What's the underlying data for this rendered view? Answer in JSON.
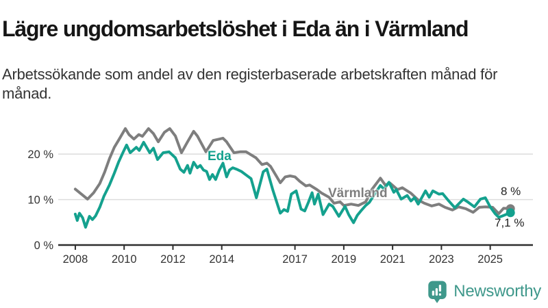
{
  "header": {
    "title": "Lägre ungdomsarbetslöshet i Eda än i Värmland",
    "subtitle": "Arbetssökande som andel av den registerbaserade arbetskraften månad för månad."
  },
  "colors": {
    "eda": "#14a18e",
    "varmland": "#7e7e7e",
    "grid": "#dcdcdc",
    "axis": "#2e2e2e",
    "tick_text": "#333333",
    "logo": "#3f988b"
  },
  "footer": {
    "brand": "Newsworthy"
  },
  "chart_data": {
    "type": "line",
    "title": "Lägre ungdomsarbetslöshet i Eda än i Värmland",
    "subtitle": "Arbetssökande som andel av den registerbaserade arbetskraften månad för månad.",
    "unit": "%",
    "grid": "horizontal",
    "legend_position": "inline-labels",
    "xlim": [
      2007.3,
      2026.75
    ],
    "ylim": [
      0,
      28.3
    ],
    "x_ticks": [
      2008,
      2010,
      2012,
      2014,
      2017,
      2019,
      2021,
      2023,
      2025
    ],
    "x_tick_labels": [
      "2008",
      "2010",
      "2012",
      "2014",
      "2017",
      "2019",
      "2021",
      "2023",
      "2025"
    ],
    "y_ticks": [
      0,
      10,
      20
    ],
    "y_tick_labels": [
      "0 %",
      "10 %",
      "20 %"
    ],
    "series": [
      {
        "name": "Värmland",
        "color": "#7e7e7e",
        "end_label": "8 %",
        "end_value": 8.0,
        "points": [
          [
            2008.0,
            12.3
          ],
          [
            2008.25,
            11.2
          ],
          [
            2008.5,
            10.1
          ],
          [
            2008.75,
            11.5
          ],
          [
            2009.0,
            13.5
          ],
          [
            2009.2,
            16.0
          ],
          [
            2009.4,
            19.0
          ],
          [
            2009.6,
            21.5
          ],
          [
            2009.8,
            23.3
          ],
          [
            2010.05,
            25.6
          ],
          [
            2010.2,
            24.3
          ],
          [
            2010.4,
            23.3
          ],
          [
            2010.6,
            24.3
          ],
          [
            2010.75,
            23.9
          ],
          [
            2011.0,
            25.6
          ],
          [
            2011.2,
            24.5
          ],
          [
            2011.4,
            22.7
          ],
          [
            2011.65,
            24.8
          ],
          [
            2011.87,
            25.6
          ],
          [
            2012.1,
            24.0
          ],
          [
            2012.35,
            20.3
          ],
          [
            2012.6,
            22.7
          ],
          [
            2012.85,
            25.0
          ],
          [
            2013.0,
            24.0
          ],
          [
            2013.35,
            20.5
          ],
          [
            2013.65,
            23.0
          ],
          [
            2013.9,
            23.3
          ],
          [
            2014.05,
            23.5
          ],
          [
            2014.2,
            22.7
          ],
          [
            2014.5,
            20.3
          ],
          [
            2014.75,
            20.5
          ],
          [
            2015.0,
            20.5
          ],
          [
            2015.4,
            19.2
          ],
          [
            2015.65,
            17.7
          ],
          [
            2015.85,
            18.0
          ],
          [
            2016.0,
            17.3
          ],
          [
            2016.2,
            15.5
          ],
          [
            2016.4,
            13.7
          ],
          [
            2016.6,
            15.0
          ],
          [
            2016.8,
            15.2
          ],
          [
            2017.0,
            15.0
          ],
          [
            2017.2,
            14.0
          ],
          [
            2017.45,
            13.0
          ],
          [
            2017.6,
            13.2
          ],
          [
            2017.9,
            12.2
          ],
          [
            2018.1,
            11.4
          ],
          [
            2018.4,
            10.5
          ],
          [
            2018.6,
            9.2
          ],
          [
            2018.85,
            9.5
          ],
          [
            2019.0,
            8.7
          ],
          [
            2019.3,
            9.0
          ],
          [
            2019.6,
            8.7
          ],
          [
            2019.9,
            9.5
          ],
          [
            2020.15,
            12.2
          ],
          [
            2020.5,
            14.7
          ],
          [
            2020.7,
            13.2
          ],
          [
            2020.9,
            13.6
          ],
          [
            2021.2,
            12.2
          ],
          [
            2021.4,
            12.6
          ],
          [
            2021.75,
            11.4
          ],
          [
            2022.05,
            9.9
          ],
          [
            2022.3,
            9.2
          ],
          [
            2022.6,
            8.6
          ],
          [
            2022.9,
            9.0
          ],
          [
            2023.15,
            8.3
          ],
          [
            2023.45,
            7.7
          ],
          [
            2023.7,
            8.4
          ],
          [
            2024.0,
            8.0
          ],
          [
            2024.3,
            7.2
          ],
          [
            2024.55,
            8.3
          ],
          [
            2024.8,
            8.4
          ],
          [
            2025.1,
            8.3
          ],
          [
            2025.35,
            6.9
          ],
          [
            2025.55,
            8.1
          ],
          [
            2025.83,
            8.0
          ]
        ]
      },
      {
        "name": "Eda",
        "color": "#14a18e",
        "end_label": "7,1 %",
        "end_value": 7.1,
        "points": [
          [
            2008.0,
            6.8
          ],
          [
            2008.08,
            5.4
          ],
          [
            2008.17,
            7.0
          ],
          [
            2008.3,
            6.0
          ],
          [
            2008.42,
            3.9
          ],
          [
            2008.58,
            6.3
          ],
          [
            2008.7,
            5.6
          ],
          [
            2008.83,
            6.4
          ],
          [
            2009.0,
            8.3
          ],
          [
            2009.17,
            10.7
          ],
          [
            2009.4,
            13.2
          ],
          [
            2009.6,
            15.8
          ],
          [
            2009.77,
            18.2
          ],
          [
            2009.95,
            20.3
          ],
          [
            2010.1,
            22.0
          ],
          [
            2010.25,
            20.3
          ],
          [
            2010.5,
            21.5
          ],
          [
            2010.62,
            20.8
          ],
          [
            2010.8,
            22.6
          ],
          [
            2011.05,
            20.3
          ],
          [
            2011.2,
            21.3
          ],
          [
            2011.37,
            18.8
          ],
          [
            2011.6,
            20.3
          ],
          [
            2011.84,
            20.5
          ],
          [
            2012.1,
            19.2
          ],
          [
            2012.3,
            16.7
          ],
          [
            2012.45,
            16.0
          ],
          [
            2012.6,
            17.5
          ],
          [
            2012.7,
            15.8
          ],
          [
            2012.85,
            18.2
          ],
          [
            2013.0,
            17.0
          ],
          [
            2013.12,
            17.5
          ],
          [
            2013.25,
            16.5
          ],
          [
            2013.38,
            16.2
          ],
          [
            2013.5,
            14.4
          ],
          [
            2013.62,
            15.5
          ],
          [
            2013.75,
            14.4
          ],
          [
            2013.9,
            16.5
          ],
          [
            2014.05,
            18.0
          ],
          [
            2014.2,
            15.0
          ],
          [
            2014.32,
            16.5
          ],
          [
            2014.45,
            17.0
          ],
          [
            2014.6,
            16.7
          ],
          [
            2014.8,
            16.2
          ],
          [
            2015.0,
            15.4
          ],
          [
            2015.2,
            14.6
          ],
          [
            2015.42,
            10.4
          ],
          [
            2015.7,
            16.1
          ],
          [
            2015.85,
            16.7
          ],
          [
            2016.1,
            12.0
          ],
          [
            2016.4,
            7.0
          ],
          [
            2016.55,
            7.8
          ],
          [
            2016.7,
            7.4
          ],
          [
            2016.85,
            11.2
          ],
          [
            2017.05,
            11.9
          ],
          [
            2017.25,
            7.9
          ],
          [
            2017.4,
            7.5
          ],
          [
            2017.55,
            9.4
          ],
          [
            2017.7,
            11.5
          ],
          [
            2017.8,
            9.0
          ],
          [
            2017.95,
            11.2
          ],
          [
            2018.15,
            6.7
          ],
          [
            2018.4,
            9.0
          ],
          [
            2018.55,
            8.5
          ],
          [
            2018.8,
            6.3
          ],
          [
            2019.05,
            8.5
          ],
          [
            2019.2,
            6.7
          ],
          [
            2019.4,
            4.9
          ],
          [
            2019.55,
            6.5
          ],
          [
            2019.7,
            7.5
          ],
          [
            2019.9,
            8.7
          ],
          [
            2020.05,
            9.4
          ],
          [
            2020.3,
            11.5
          ],
          [
            2020.5,
            13.1
          ],
          [
            2020.65,
            12.3
          ],
          [
            2020.85,
            13.8
          ],
          [
            2021.05,
            11.6
          ],
          [
            2021.15,
            12.2
          ],
          [
            2021.35,
            10.1
          ],
          [
            2021.6,
            10.9
          ],
          [
            2021.75,
            9.7
          ],
          [
            2021.9,
            10.4
          ],
          [
            2022.05,
            9.0
          ],
          [
            2022.35,
            11.9
          ],
          [
            2022.5,
            10.5
          ],
          [
            2022.65,
            11.9
          ],
          [
            2022.9,
            11.2
          ],
          [
            2023.05,
            11.3
          ],
          [
            2023.3,
            9.7
          ],
          [
            2023.55,
            8.2
          ],
          [
            2023.9,
            10.1
          ],
          [
            2024.1,
            9.4
          ],
          [
            2024.35,
            8.4
          ],
          [
            2024.6,
            10.1
          ],
          [
            2024.8,
            10.4
          ],
          [
            2025.0,
            8.4
          ],
          [
            2025.2,
            6.9
          ],
          [
            2025.35,
            6.1
          ],
          [
            2025.5,
            6.4
          ],
          [
            2025.83,
            7.1
          ]
        ]
      }
    ]
  }
}
